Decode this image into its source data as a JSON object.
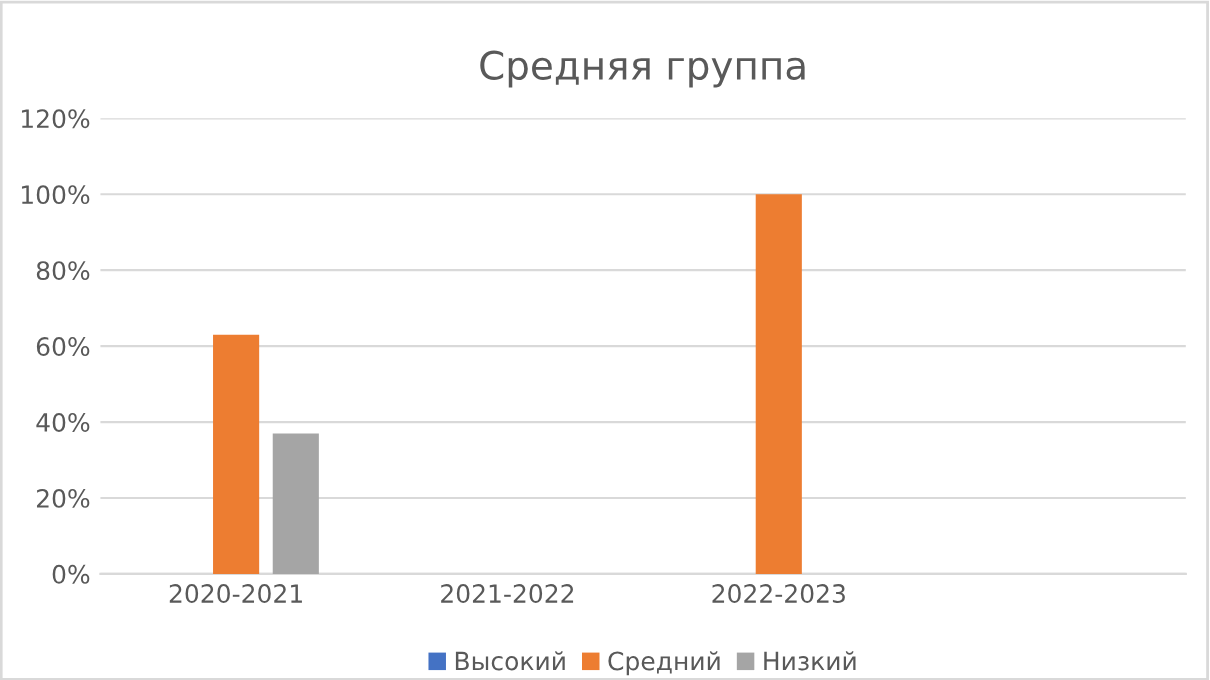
{
  "chart_data": {
    "type": "bar",
    "title": "Средняя группа",
    "categories": [
      "2020-2021",
      "2021-2022",
      "2022-2023",
      null
    ],
    "series": [
      {
        "name": "Высокий",
        "color": "#4472c4",
        "values": [
          0,
          0,
          0,
          null
        ]
      },
      {
        "name": "Средний",
        "color": "#ed7d31",
        "values": [
          63,
          0,
          100,
          null
        ]
      },
      {
        "name": "Низкий",
        "color": "#a5a5a5",
        "values": [
          37,
          0,
          0,
          null
        ]
      }
    ],
    "ylim": [
      0,
      120
    ],
    "yticks": [
      {
        "value": 0,
        "label": "0%"
      },
      {
        "value": 20,
        "label": "20%"
      },
      {
        "value": 40,
        "label": "40%"
      },
      {
        "value": 60,
        "label": "60%"
      },
      {
        "value": 80,
        "label": "80%"
      },
      {
        "value": 100,
        "label": "100%"
      },
      {
        "value": 120,
        "label": "120%"
      }
    ],
    "grid": "y",
    "legend": "bottom"
  }
}
